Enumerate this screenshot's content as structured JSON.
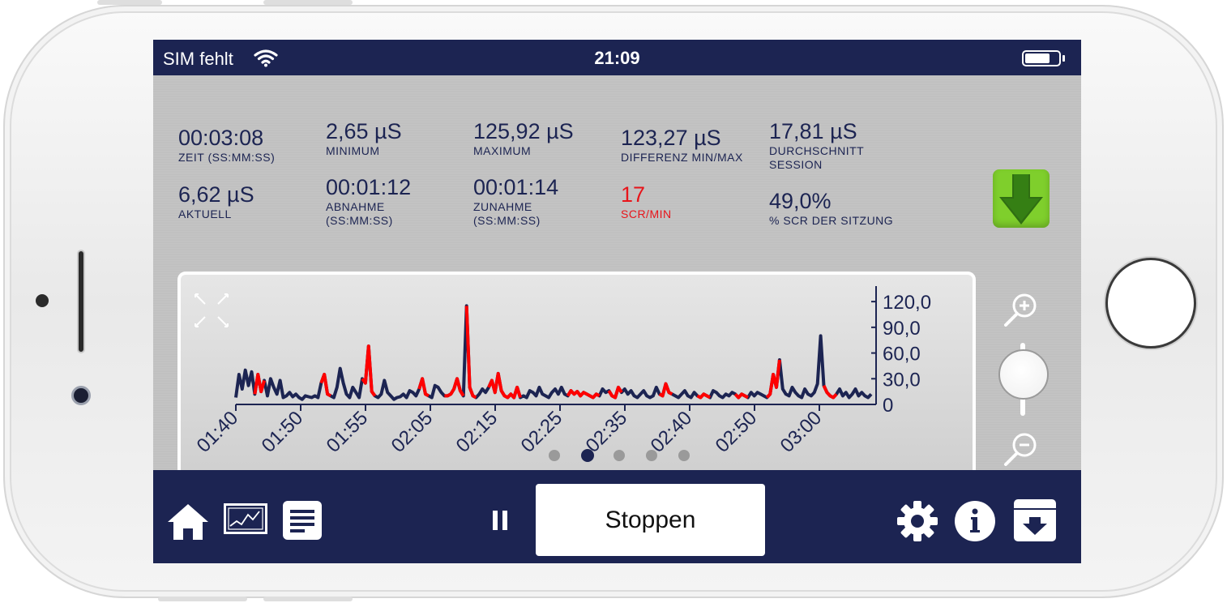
{
  "status_bar": {
    "carrier": "SIM fehlt",
    "time": "21:09",
    "battery_level": 0.75
  },
  "stats": [
    {
      "value": "00:03:08",
      "label": "ZEIT (SS:MM:SS)"
    },
    {
      "value": "2,65 µS",
      "label": "MINIMUM"
    },
    {
      "value": "125,92 µS",
      "label": "MAXIMUM"
    },
    {
      "value": "123,27 µS",
      "label": "DIFFERENZ MIN/MAX"
    },
    {
      "value": "17,81 µS",
      "label": "DURCHSCHNITT SESSION"
    },
    {
      "value": "6,62 µS",
      "label": "AKTUELL"
    },
    {
      "value": "00:01:12",
      "label": "ABNAHME (SS:MM:SS)"
    },
    {
      "value": "00:01:14",
      "label": "ZUNAHME (SS:MM:SS)"
    },
    {
      "value": "17",
      "label": "SCR/MIN",
      "color": "#e8141a"
    },
    {
      "value": "49,0%",
      "label": "% SCR DER SITZUNG"
    }
  ],
  "chart_data": {
    "type": "line",
    "x_tick_labels": [
      "01:40",
      "01:50",
      "01:55",
      "02:05",
      "02:15",
      "02:25",
      "02:35",
      "02:40",
      "02:50",
      "03:00"
    ],
    "y_tick_labels": [
      "120,0",
      "90,0",
      "60,0",
      "30,0",
      "0"
    ],
    "ylim": [
      0,
      140
    ],
    "series_colors": {
      "base": "#1c2452",
      "scr_highlight": "#ff0000"
    },
    "values": [
      8,
      35,
      18,
      40,
      22,
      38,
      12,
      35,
      15,
      28,
      10,
      30,
      20,
      12,
      28,
      8,
      10,
      14,
      9,
      12,
      8,
      6,
      10,
      9,
      8,
      10,
      8,
      25,
      35,
      12,
      10,
      8,
      20,
      42,
      25,
      12,
      8,
      20,
      14,
      8,
      30,
      25,
      68,
      15,
      10,
      8,
      12,
      28,
      14,
      10,
      6,
      8,
      9,
      12,
      8,
      16,
      14,
      10,
      18,
      30,
      12,
      10,
      8,
      22,
      20,
      14,
      10,
      10,
      12,
      18,
      30,
      16,
      10,
      115,
      20,
      10,
      8,
      12,
      18,
      14,
      20,
      28,
      14,
      36,
      16,
      10,
      8,
      12,
      8,
      20,
      8,
      10,
      8,
      16,
      14,
      10,
      20,
      12,
      10,
      8,
      14,
      18,
      12,
      20,
      12,
      10,
      16,
      12,
      15,
      10,
      14,
      12,
      10,
      8,
      12,
      10,
      18,
      14,
      16,
      10,
      8,
      20,
      14,
      18,
      12,
      16,
      10,
      8,
      12,
      16,
      10,
      8,
      10,
      20,
      12,
      10,
      24,
      14,
      12,
      10,
      8,
      12,
      16,
      10,
      8,
      14,
      10,
      8,
      12,
      10,
      8,
      16,
      14,
      10,
      8,
      12,
      10,
      14,
      12,
      8,
      12,
      10,
      8,
      14,
      10,
      14,
      12,
      10,
      8,
      12,
      35,
      20,
      52,
      18,
      12,
      10,
      20,
      14,
      10,
      8,
      18,
      12,
      10,
      14,
      24,
      80,
      22,
      14,
      10,
      8,
      12,
      18,
      10,
      14,
      8,
      12,
      18,
      10,
      14,
      10,
      8,
      12
    ],
    "red_segments": [
      [
        6,
        9
      ],
      [
        27,
        30
      ],
      [
        40,
        44
      ],
      [
        58,
        61
      ],
      [
        66,
        72
      ],
      [
        73,
        76
      ],
      [
        80,
        90
      ],
      [
        105,
        115
      ],
      [
        118,
        122
      ],
      [
        134,
        138
      ],
      [
        146,
        150
      ],
      [
        158,
        162
      ],
      [
        168,
        172
      ],
      [
        186,
        190
      ]
    ]
  },
  "pager": {
    "count": 5,
    "active": 1
  },
  "toolbar": {
    "stop_label": "Stoppen"
  }
}
